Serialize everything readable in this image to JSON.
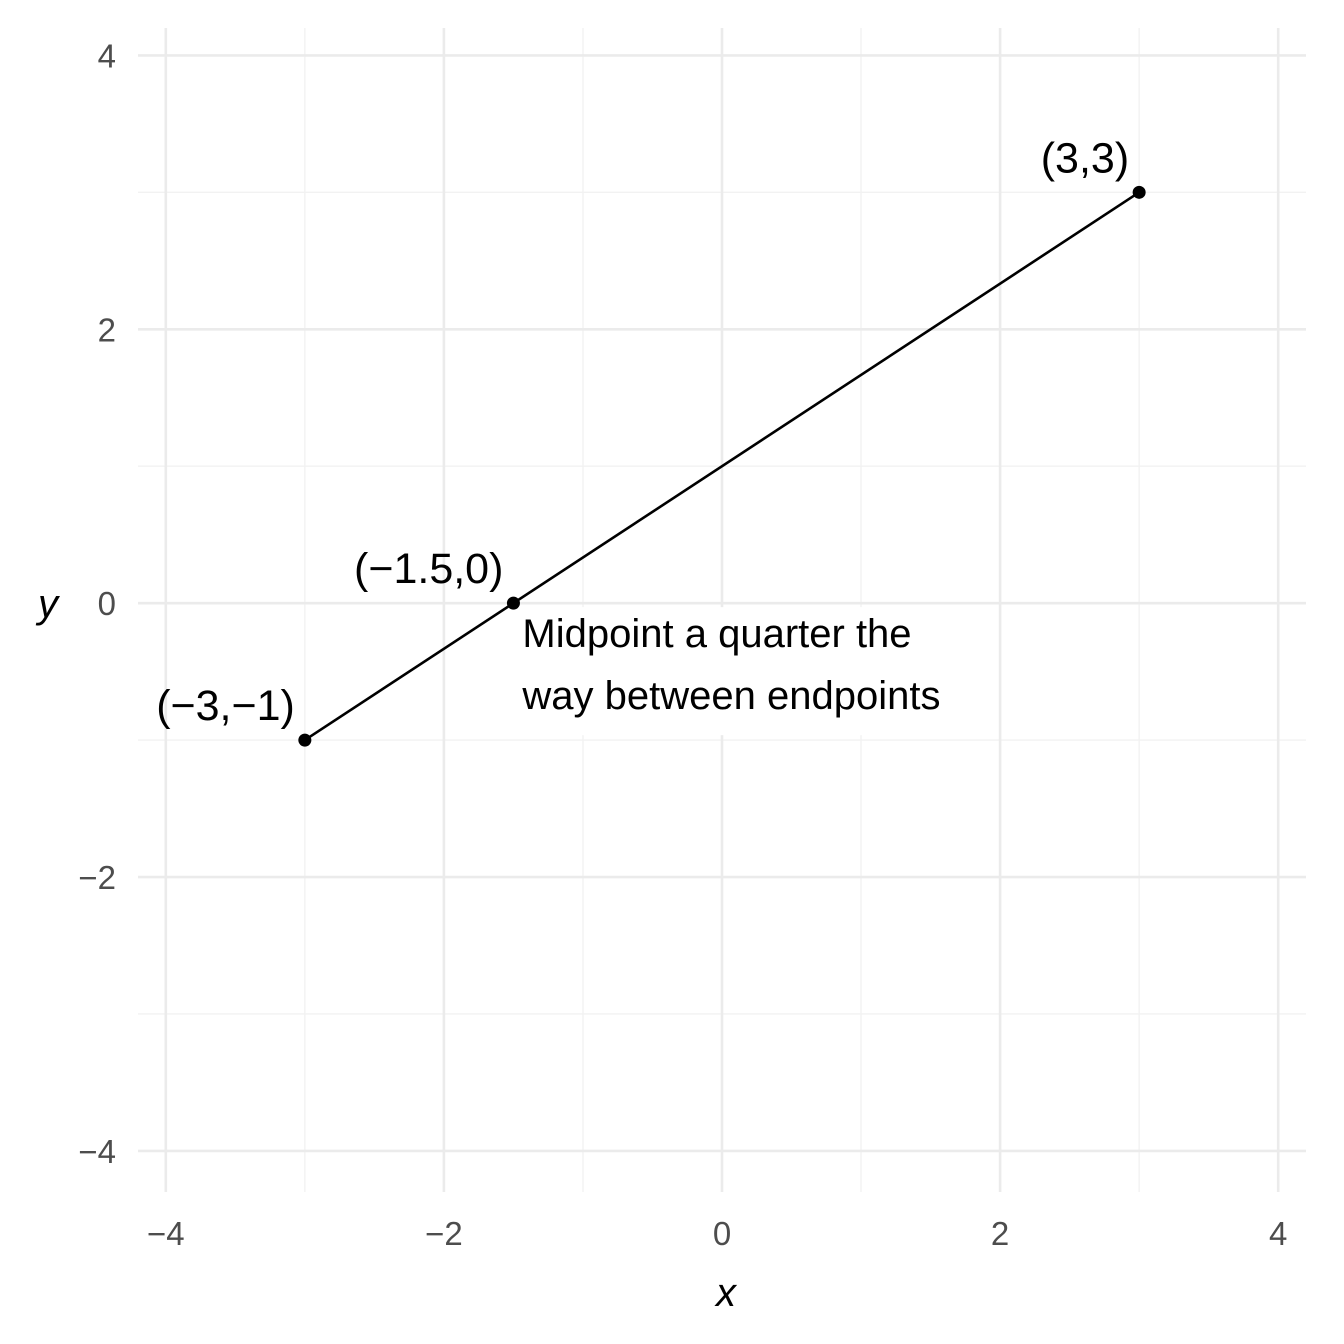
{
  "chart_data": {
    "type": "scatter",
    "xlabel": "x",
    "ylabel": "y",
    "xlim": [
      -4.2,
      4.2
    ],
    "ylim": [
      -4.3,
      4.2
    ],
    "x_ticks": [
      -4,
      -2,
      0,
      2,
      4
    ],
    "y_ticks": [
      -4,
      -2,
      0,
      2,
      4
    ],
    "x_tick_labels": [
      "−4",
      "−2",
      "0",
      "2",
      "4"
    ],
    "y_tick_labels": [
      "−4",
      "−2",
      "0",
      "2",
      "4"
    ],
    "minor_grid_x": [
      -3,
      -1,
      1,
      3
    ],
    "minor_grid_y": [
      -3,
      -1,
      1,
      3
    ],
    "grid": true,
    "segment": {
      "from": [
        -3,
        -1
      ],
      "to": [
        3,
        3
      ]
    },
    "points": [
      {
        "x": -3,
        "y": -1,
        "label": "(−3,−1)"
      },
      {
        "x": -1.5,
        "y": 0,
        "label": "(−1.5,0)"
      },
      {
        "x": 3,
        "y": 3,
        "label": "(3,3)"
      }
    ],
    "annotation": {
      "x": -1.5,
      "y": 0,
      "lines": [
        "Midpoint a quarter the",
        "way between endpoints"
      ]
    },
    "colors": {
      "line": "#000000",
      "points": "#000000",
      "grid_major": "#ebebeb",
      "grid_minor": "#f2f2f2",
      "tick_text": "#4d4d4d",
      "background": "#ffffff"
    }
  }
}
